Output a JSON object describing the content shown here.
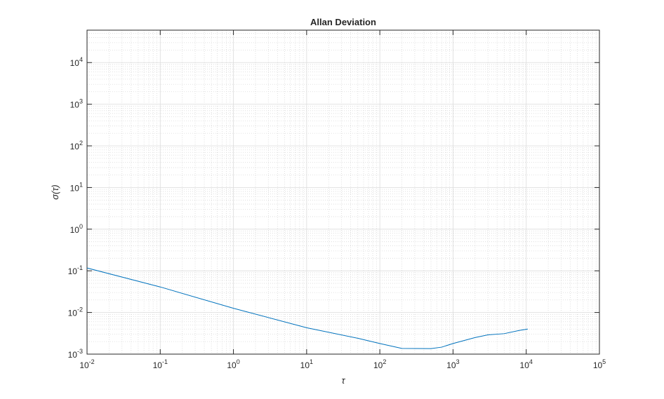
{
  "chart_data": {
    "type": "line",
    "title": "Allan Deviation",
    "x_label": "τ",
    "y_label": "σ(τ)",
    "x": [
      0.01,
      0.1,
      1,
      10,
      50,
      100,
      200,
      500,
      700,
      1000,
      2000,
      3000,
      5000,
      8000,
      10500
    ],
    "series": [
      {
        "name": "Allan deviation",
        "color": "#0072bd",
        "values": [
          0.117,
          0.041,
          0.0126,
          0.0043,
          0.0024,
          0.0018,
          0.00137,
          0.00136,
          0.00147,
          0.0018,
          0.0025,
          0.0029,
          0.0031,
          0.0037,
          0.004
        ]
      }
    ],
    "xscale": "log",
    "yscale": "log",
    "xlim": [
      0.01,
      100000
    ],
    "ylim": [
      0.001,
      60000
    ],
    "xticks": [
      {
        "value": 0.01,
        "label": "10^-2"
      },
      {
        "value": 0.1,
        "label": "10^-1"
      },
      {
        "value": 1,
        "label": "10^0"
      },
      {
        "value": 10,
        "label": "10^1"
      },
      {
        "value": 100,
        "label": "10^2"
      },
      {
        "value": 1000,
        "label": "10^3"
      },
      {
        "value": 10000,
        "label": "10^4"
      },
      {
        "value": 100000,
        "label": "10^5"
      }
    ],
    "yticks": [
      {
        "value": 0.001,
        "label": "10^-3"
      },
      {
        "value": 0.01,
        "label": "10^-2"
      },
      {
        "value": 0.1,
        "label": "10^-1"
      },
      {
        "value": 1,
        "label": "10^0"
      },
      {
        "value": 10,
        "label": "10^1"
      },
      {
        "value": 100,
        "label": "10^2"
      },
      {
        "value": 1000,
        "label": "10^3"
      },
      {
        "value": 10000,
        "label": "10^4"
      }
    ],
    "grid": true,
    "minor_grid": true
  }
}
